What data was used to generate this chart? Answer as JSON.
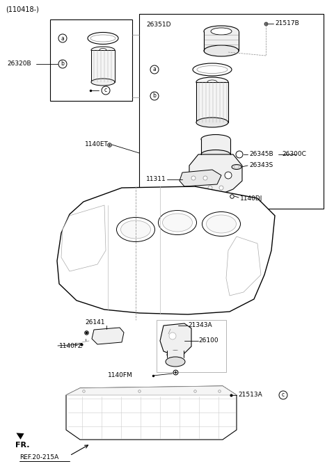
{
  "bg_color": "#ffffff",
  "lc": "#000000",
  "labels": {
    "title": "(110418-)",
    "26320B": "26320B",
    "26351D": "26351D",
    "21517B": "21517B",
    "26345B": "26345B",
    "26343S": "26343S",
    "26300C": "26300C",
    "1140ET": "1140ET",
    "11311": "11311",
    "1140DJ": "1140DJ",
    "26141": "26141",
    "1140FZ": "1140FZ",
    "21343A": "21343A",
    "26100": "26100",
    "1140FM": "1140FM",
    "21513A": "21513A",
    "FR": "FR.",
    "REF": "REF.20-215A"
  }
}
